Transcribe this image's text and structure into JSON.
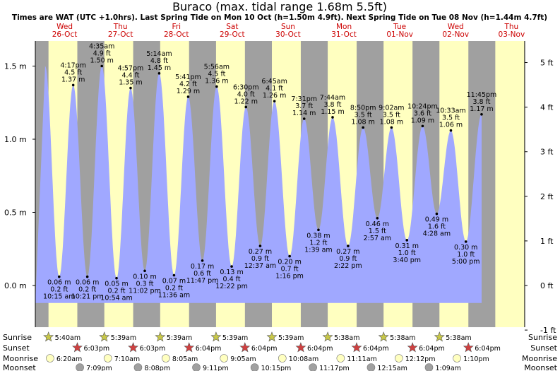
{
  "header": {
    "title": "Buraco (max. tidal range 1.68m 5.5ft)",
    "subtitle": "Times are WAT (UTC +1.0hrs). Last Spring Tide on Mon 10 Oct (h=1.50m 4.9ft). Next Spring Tide on Tue 08 Nov (h=1.44m 4.7ft)"
  },
  "colors": {
    "tide_fill": "#a0a8ff",
    "day_band": "#ffffc0",
    "night_band": "#a0a0a0",
    "sun_star": "#c8c848",
    "sunset_star": "#d04040",
    "moonrise_circle": "#ffffc0",
    "moonset_circle": "#a0a0a0"
  },
  "chart_data": {
    "type": "area",
    "title": "Buraco (max. tidal range 1.68m 5.5ft)",
    "y_unit_left": "m",
    "y_unit_right": "ft",
    "ylim_m": [
      -0.22,
      1.7
    ],
    "y_ticks_left": [
      {
        "value": 0.0,
        "label": "0.0 m"
      },
      {
        "value": 0.5,
        "label": "0.5 m"
      },
      {
        "value": 1.0,
        "label": "1.0 m"
      },
      {
        "value": 1.5,
        "label": "1.5 m"
      }
    ],
    "y_ticks_right": [
      {
        "value_ft": -1,
        "label": "-1 ft"
      },
      {
        "value_ft": 0,
        "label": "0 ft"
      },
      {
        "value_ft": 1,
        "label": "1 ft"
      },
      {
        "value_ft": 2,
        "label": "2 ft"
      },
      {
        "value_ft": 3,
        "label": "3 ft"
      },
      {
        "value_ft": 4,
        "label": "4 ft"
      },
      {
        "value_ft": 5,
        "label": "5 ft"
      }
    ],
    "x_start": "2022-10-26 00:00",
    "x_end": "2022-11-03 00:00",
    "days": [
      {
        "name": "Wed",
        "date": "26-Oct",
        "sunrise": "5:40am",
        "sunset": "6:03pm",
        "moonrise": "6:20am",
        "moonset": "7:09pm"
      },
      {
        "name": "Thu",
        "date": "27-Oct",
        "sunrise": "5:39am",
        "sunset": "6:03pm",
        "moonrise": "7:10am",
        "moonset": "8:08pm"
      },
      {
        "name": "Fri",
        "date": "28-Oct",
        "sunrise": "5:39am",
        "sunset": "6:04pm",
        "moonrise": "8:05am",
        "moonset": "9:11pm"
      },
      {
        "name": "Sat",
        "date": "29-Oct",
        "sunrise": "5:39am",
        "sunset": "6:04pm",
        "moonrise": "9:05am",
        "moonset": "10:15pm"
      },
      {
        "name": "Sun",
        "date": "30-Oct",
        "sunrise": "5:39am",
        "sunset": "6:04pm",
        "moonrise": "10:08am",
        "moonset": "11:17pm"
      },
      {
        "name": "Mon",
        "date": "31-Oct",
        "sunrise": "5:38am",
        "sunset": "6:04pm",
        "moonrise": "11:11am",
        "moonset": ""
      },
      {
        "name": "Tue",
        "date": "01-Nov",
        "sunrise": "5:38am",
        "sunset": "6:04pm",
        "moonrise": "12:12pm",
        "moonset": "12:15am"
      },
      {
        "name": "Wed",
        "date": "02-Nov",
        "sunrise": "5:38am",
        "sunset": "6:04pm",
        "moonrise": "1:10pm",
        "moonset": "1:09am"
      },
      {
        "name": "Thu",
        "date": "03-Nov",
        "sunrise": "",
        "sunset": "",
        "moonrise": "",
        "moonset": ""
      }
    ],
    "tides": [
      {
        "day": 0,
        "time": "10:15 am",
        "h_m": 0.06,
        "h_ft": "0.2 ft",
        "type": "low"
      },
      {
        "day": 0,
        "time": "4:17 pm",
        "h_m": 1.37,
        "h_ft": "4.5 ft",
        "type": "high"
      },
      {
        "day": 0,
        "time": "10:21 pm",
        "h_m": 0.06,
        "h_ft": "0.2 ft",
        "type": "low"
      },
      {
        "day": 1,
        "time": "4:35 am",
        "h_m": 1.5,
        "h_ft": "4.9 ft",
        "type": "high"
      },
      {
        "day": 1,
        "time": "10:54 am",
        "h_m": 0.05,
        "h_ft": "0.2 ft",
        "type": "low"
      },
      {
        "day": 1,
        "time": "4:57 pm",
        "h_m": 1.35,
        "h_ft": "4.4 ft",
        "type": "high"
      },
      {
        "day": 1,
        "time": "11:02 pm",
        "h_m": 0.1,
        "h_ft": "0.3 ft",
        "type": "low"
      },
      {
        "day": 2,
        "time": "5:14 am",
        "h_m": 1.45,
        "h_ft": "4.8 ft",
        "type": "high"
      },
      {
        "day": 2,
        "time": "11:36 am",
        "h_m": 0.07,
        "h_ft": "0.2 ft",
        "type": "low"
      },
      {
        "day": 2,
        "time": "5:41 pm",
        "h_m": 1.29,
        "h_ft": "4.2 ft",
        "type": "high"
      },
      {
        "day": 2,
        "time": "11:47 pm",
        "h_m": 0.17,
        "h_ft": "0.6 ft",
        "type": "low"
      },
      {
        "day": 3,
        "time": "5:56 am",
        "h_m": 1.36,
        "h_ft": "4.5 ft",
        "type": "high"
      },
      {
        "day": 3,
        "time": "12:22 pm",
        "h_m": 0.13,
        "h_ft": "0.4 ft",
        "type": "low"
      },
      {
        "day": 3,
        "time": "6:30 pm",
        "h_m": 1.22,
        "h_ft": "4.0 ft",
        "type": "high"
      },
      {
        "day": 4,
        "time": "12:37 am",
        "h_m": 0.27,
        "h_ft": "0.9 ft",
        "type": "low"
      },
      {
        "day": 4,
        "time": "6:45 am",
        "h_m": 1.26,
        "h_ft": "4.1 ft",
        "type": "high"
      },
      {
        "day": 4,
        "time": "1:16 pm",
        "h_m": 0.2,
        "h_ft": "0.7 ft",
        "type": "low"
      },
      {
        "day": 4,
        "time": "7:31 pm",
        "h_m": 1.14,
        "h_ft": "3.7 ft",
        "type": "high"
      },
      {
        "day": 5,
        "time": "1:39 am",
        "h_m": 0.38,
        "h_ft": "1.2 ft",
        "type": "low"
      },
      {
        "day": 5,
        "time": "7:44 am",
        "h_m": 1.15,
        "h_ft": "3.8 ft",
        "type": "high"
      },
      {
        "day": 5,
        "time": "2:22 pm",
        "h_m": 0.27,
        "h_ft": "0.9 ft",
        "type": "low"
      },
      {
        "day": 5,
        "time": "8:50 pm",
        "h_m": 1.08,
        "h_ft": "3.5 ft",
        "type": "high"
      },
      {
        "day": 6,
        "time": "2:57 am",
        "h_m": 0.46,
        "h_ft": "1.5 ft",
        "type": "low"
      },
      {
        "day": 6,
        "time": "9:02 am",
        "h_m": 1.08,
        "h_ft": "3.5 ft",
        "type": "high"
      },
      {
        "day": 6,
        "time": "3:40 pm",
        "h_m": 0.31,
        "h_ft": "1.0 ft",
        "type": "low"
      },
      {
        "day": 6,
        "time": "10:24 pm",
        "h_m": 1.09,
        "h_ft": "3.6 ft",
        "type": "high"
      },
      {
        "day": 7,
        "time": "4:28 am",
        "h_m": 0.49,
        "h_ft": "1.6 ft",
        "type": "low"
      },
      {
        "day": 7,
        "time": "10:33 am",
        "h_m": 1.06,
        "h_ft": "3.5 ft",
        "type": "high"
      },
      {
        "day": 7,
        "time": "5:00 pm",
        "h_m": 0.3,
        "h_ft": "1.0 ft",
        "type": "low"
      },
      {
        "day": 7,
        "time": "11:45 pm",
        "h_m": 1.17,
        "h_ft": "3.8 ft",
        "type": "high"
      }
    ],
    "row_labels": [
      "Sunrise",
      "Sunset",
      "Moonrise",
      "Moonset"
    ]
  }
}
